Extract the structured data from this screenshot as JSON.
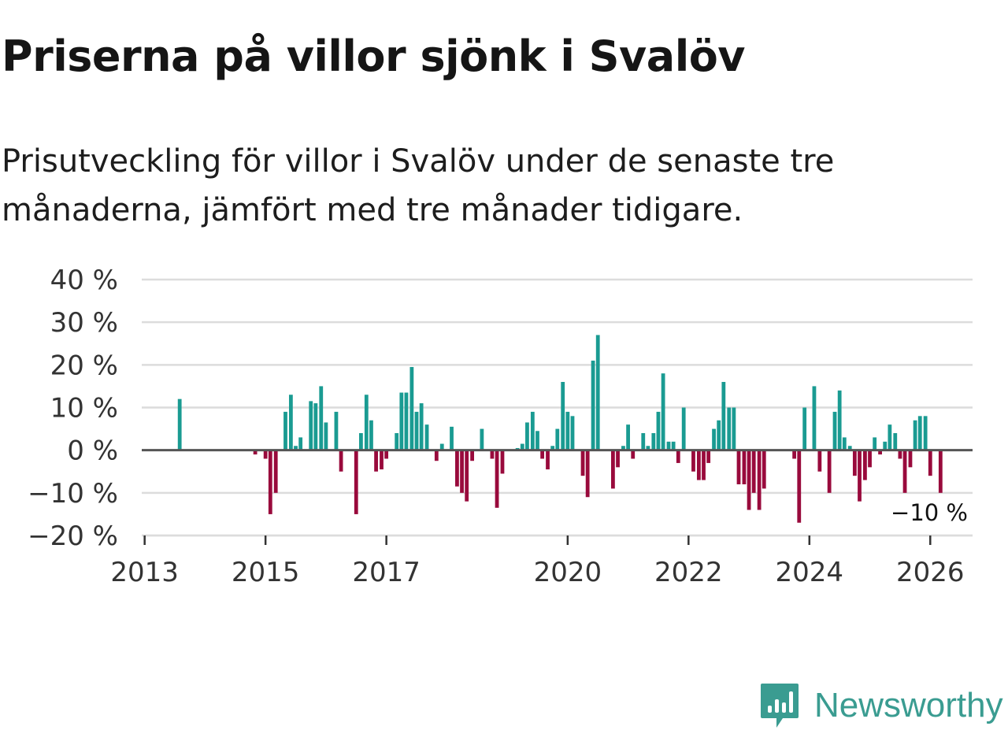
{
  "title": "Priserna på villor sjönk i Svalöv",
  "subtitle": "Prisutveckling för villor i Svalöv under de senaste tre månaderna, jämfört med tre månader tidigare.",
  "brand": {
    "name": "Newsworthy",
    "logo_icon": "newsworthy-logo-icon"
  },
  "colors": {
    "positive": "#1a9b92",
    "negative": "#990a3c",
    "zero_line": "#555555",
    "grid": "#dcdcdc",
    "brand": "#3a9c91"
  },
  "chart_data": {
    "type": "bar",
    "title": "Priserna på villor sjönk i Svalöv",
    "xlabel": "",
    "ylabel": "",
    "ylim": [
      -20,
      40
    ],
    "xlim": [
      2012.9,
      2026.7
    ],
    "yticks": [
      40,
      30,
      20,
      10,
      0,
      -10,
      -20
    ],
    "ytick_labels": [
      "40 %",
      "30 %",
      "20 %",
      "10 %",
      "0 %",
      "−10 %",
      "−20 %"
    ],
    "xticks": [
      2013,
      2015,
      2017,
      2020,
      2022,
      2024,
      2026
    ],
    "xtick_labels": [
      "2013",
      "2015",
      "2017",
      "2020",
      "2022",
      "2024",
      "2026"
    ],
    "last_value_label": "−10 %",
    "series": [
      {
        "name": "Prisutveckling",
        "x": [
          2013.58,
          2014.83,
          2015.0,
          2015.08,
          2015.17,
          2015.33,
          2015.42,
          2015.5,
          2015.58,
          2015.75,
          2015.83,
          2015.92,
          2016.0,
          2016.17,
          2016.25,
          2016.5,
          2016.58,
          2016.67,
          2016.75,
          2016.83,
          2016.92,
          2017.0,
          2017.17,
          2017.25,
          2017.33,
          2017.42,
          2017.5,
          2017.58,
          2017.67,
          2017.83,
          2017.92,
          2018.08,
          2018.17,
          2018.25,
          2018.33,
          2018.42,
          2018.5,
          2018.58,
          2018.75,
          2018.83,
          2018.92,
          2019.0,
          2019.17,
          2019.25,
          2019.33,
          2019.42,
          2019.5,
          2019.58,
          2019.67,
          2019.75,
          2019.83,
          2019.92,
          2020.0,
          2020.08,
          2020.25,
          2020.33,
          2020.42,
          2020.5,
          2020.58,
          2020.75,
          2020.83,
          2020.92,
          2021.0,
          2021.08,
          2021.25,
          2021.33,
          2021.42,
          2021.5,
          2021.58,
          2021.67,
          2021.75,
          2021.83,
          2021.92,
          2022.08,
          2022.17,
          2022.25,
          2022.33,
          2022.42,
          2022.5,
          2022.58,
          2022.67,
          2022.75,
          2022.83,
          2022.92,
          2023.0,
          2023.08,
          2023.17,
          2023.25,
          2023.33,
          2023.42,
          2023.5,
          2023.58,
          2023.67,
          2023.75,
          2023.83,
          2023.92,
          2024.0,
          2024.08,
          2024.17,
          2024.33,
          2024.42,
          2024.5,
          2024.58,
          2024.67,
          2024.75,
          2024.83,
          2024.92,
          2025.0,
          2025.08,
          2025.17,
          2025.25,
          2025.33,
          2025.42,
          2025.5,
          2025.58,
          2025.67,
          2025.75,
          2025.83,
          2025.92,
          2026.0,
          2026.08,
          2026.17
        ],
        "values": [
          12,
          -1,
          -2,
          -15,
          -10,
          9,
          13,
          1,
          3,
          11.5,
          11,
          15,
          6.5,
          9,
          -5,
          -15,
          4,
          13,
          7,
          -5,
          -4.5,
          -2,
          4,
          13.5,
          13.5,
          19.5,
          9,
          11,
          6,
          -2.5,
          1.5,
          5.5,
          -8.5,
          -10,
          -12,
          -2.5,
          0,
          5,
          -2,
          -13.5,
          -5.5,
          0,
          0.5,
          1.5,
          6.5,
          9,
          4.5,
          -2,
          -4.5,
          1,
          5,
          16,
          9,
          8,
          -6,
          -11,
          21,
          27,
          0,
          -9,
          -4,
          1,
          6,
          -2,
          4,
          1,
          4,
          9,
          18,
          2,
          2,
          -3,
          10,
          -5,
          -7,
          -7,
          -3,
          5,
          7,
          16,
          10,
          10,
          -8,
          -8,
          -14,
          -10,
          -14,
          -9,
          0,
          0,
          0,
          0,
          0,
          -2,
          -17,
          10,
          0,
          15,
          -5,
          -10,
          9,
          14,
          3,
          1,
          -6,
          -12,
          -7,
          -4,
          3,
          -1,
          2,
          6,
          4,
          -2,
          -10,
          -4,
          7,
          8,
          8,
          -6,
          0,
          -10
        ]
      }
    ]
  }
}
